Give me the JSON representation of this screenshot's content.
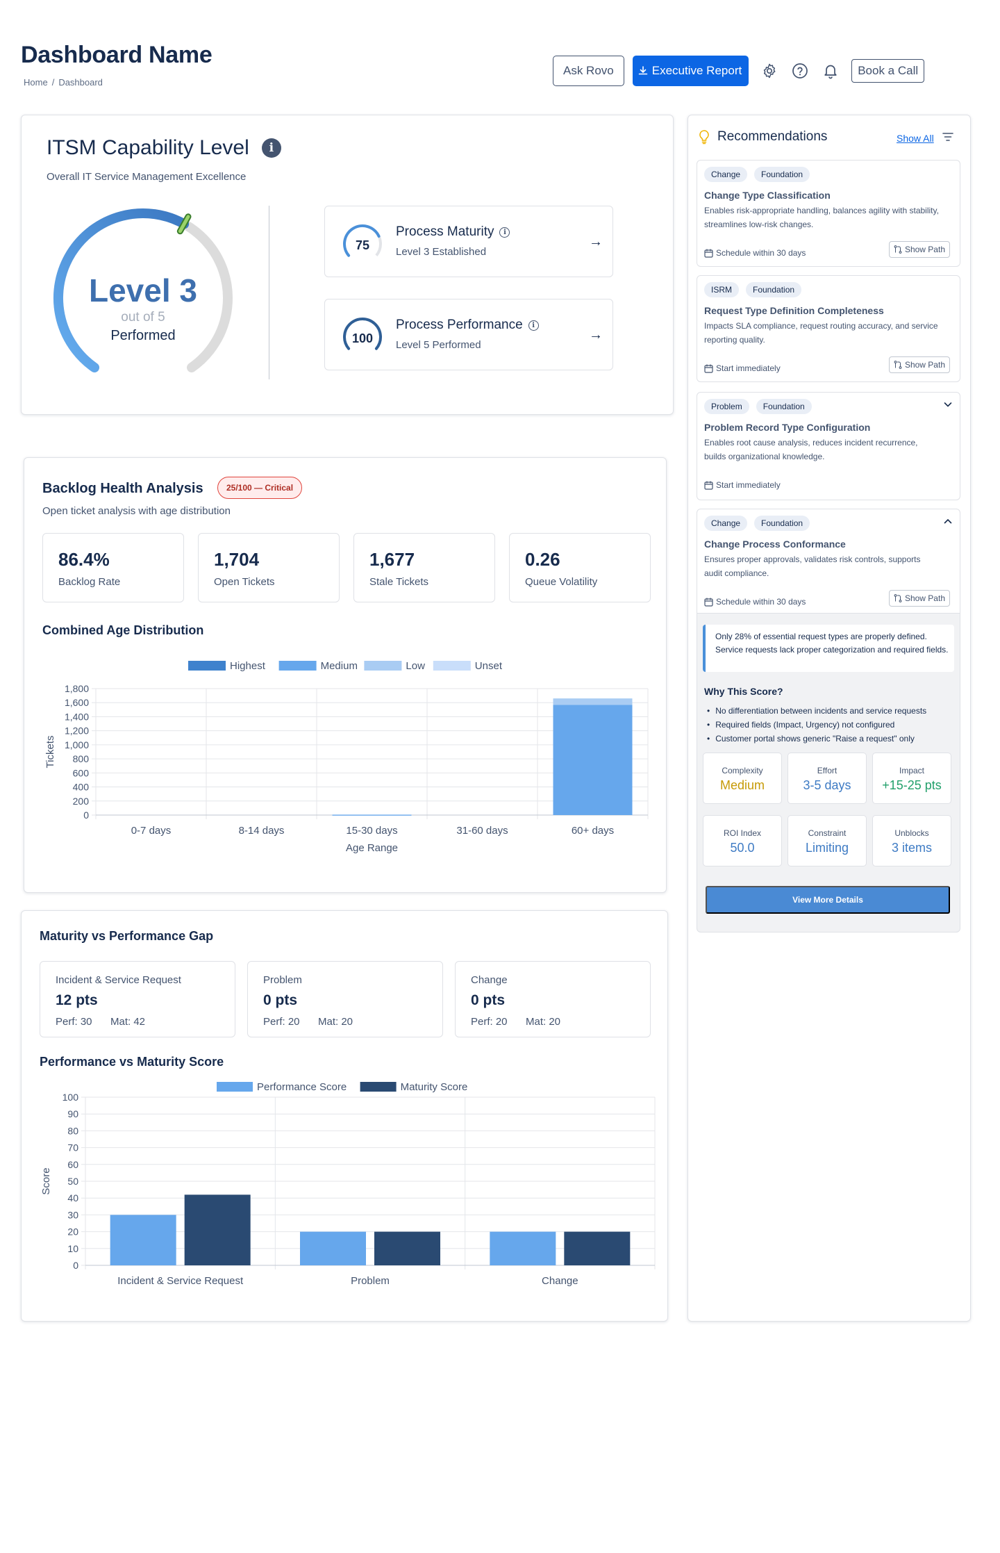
{
  "header": {
    "title": "Dashboard Name",
    "breadcrumb": [
      "Home",
      "Dashboard"
    ]
  },
  "actions": {
    "ask_rovo": "Ask Rovo",
    "executive_report": "Executive Report",
    "book_call": "Book a Call",
    "icons": [
      "gear-icon",
      "help-icon",
      "bell-icon",
      "download-icon"
    ]
  },
  "colors": {
    "primary": "#0c66e4",
    "gauge_fill": "#4a90d9",
    "critical": "#e0443c",
    "highest": "#3f82cd",
    "medium": "#66a7ec",
    "low": "#a9ccf3",
    "unset": "#c9defa",
    "maturity": "#2a4a72"
  },
  "itsm": {
    "title": "ITSM Capability Level",
    "subtitle": "Overall IT Service Management Excellence",
    "level_label": "Level 3",
    "level": 3,
    "max_level": 5,
    "out_of": "out of 5",
    "status": "Performed",
    "process_maturity": {
      "name": "Process Maturity",
      "score": 75,
      "score_label": "75",
      "subtitle": "Level 3 Established"
    },
    "process_performance": {
      "name": "Process Performance",
      "score": 100,
      "score_label": "100",
      "subtitle": "Level 5 Performed"
    }
  },
  "backlog": {
    "title": "Backlog Health Analysis",
    "badge": "25/100 — Critical",
    "subtitle": "Open ticket analysis with age distribution",
    "stats": [
      {
        "value": "86.4%",
        "label": "Backlog Rate"
      },
      {
        "value": "1,704",
        "label": "Open Tickets"
      },
      {
        "value": "1,677",
        "label": "Stale Tickets"
      },
      {
        "value": "0.26",
        "label": "Queue Volatility"
      }
    ],
    "chart_title": "Combined Age Distribution"
  },
  "gap": {
    "title": "Maturity vs Performance Gap",
    "boxes": [
      {
        "name": "Incident & Service Request",
        "pts": "12 pts",
        "perf": "Perf: 30",
        "mat": "Mat: 42"
      },
      {
        "name": "Problem",
        "pts": "0 pts",
        "perf": "Perf: 20",
        "mat": "Mat: 20"
      },
      {
        "name": "Change",
        "pts": "0 pts",
        "perf": "Perf: 20",
        "mat": "Mat: 20"
      }
    ],
    "chart_title": "Performance vs Maturity Score"
  },
  "chart_data": [
    {
      "type": "bar",
      "stacked": true,
      "categories": [
        "0-7 days",
        "8-14 days",
        "15-30 days",
        "31-60 days",
        "60+ days"
      ],
      "series": [
        {
          "name": "Highest",
          "values": [
            0,
            0,
            0,
            0,
            0
          ]
        },
        {
          "name": "Medium",
          "values": [
            0,
            0,
            2,
            0,
            1570
          ]
        },
        {
          "name": "Low",
          "values": [
            0,
            0,
            8,
            0,
            90
          ]
        },
        {
          "name": "Unset",
          "values": [
            0,
            0,
            0,
            0,
            0
          ]
        }
      ],
      "xlabel": "Age Range",
      "ylabel": "Tickets",
      "ylim": [
        0,
        1800
      ],
      "yticks": [
        "0",
        "200",
        "400",
        "600",
        "800",
        "1,000",
        "1,200",
        "1,400",
        "1,600",
        "1,800"
      ],
      "grid": true,
      "legend": "top"
    },
    {
      "type": "bar",
      "categories": [
        "Incident & Service Request",
        "Problem",
        "Change"
      ],
      "series": [
        {
          "name": "Performance Score",
          "values": [
            30,
            20,
            20
          ]
        },
        {
          "name": "Maturity Score",
          "values": [
            42,
            20,
            20
          ]
        }
      ],
      "xlabel": "",
      "ylabel": "Score",
      "ylim": [
        0,
        100
      ],
      "yticks": [
        "0",
        "10",
        "20",
        "30",
        "40",
        "50",
        "60",
        "70",
        "80",
        "90",
        "100"
      ],
      "grid": true,
      "legend": "top"
    }
  ],
  "recommendations": {
    "title": "Recommendations",
    "show_all": "Show All",
    "show_path": "Show Path",
    "items": [
      {
        "tags": [
          "Change",
          "Foundation"
        ],
        "title": "Change Type Classification",
        "desc": "Enables risk-appropriate handling, balances agility with stability, streamlines low-risk changes.",
        "timing": "Schedule within 30 days",
        "has_path": true
      },
      {
        "tags": [
          "ISRM",
          "Foundation"
        ],
        "title": "Request Type Definition Completeness",
        "desc": "Impacts SLA compliance, request routing accuracy, and service reporting quality.",
        "timing": "Start immediately",
        "has_path": true
      },
      {
        "tags": [
          "Problem",
          "Foundation"
        ],
        "title": "Problem Record Type Configuration",
        "desc": "Enables root cause analysis, reduces incident recurrence, builds organizational knowledge.",
        "timing": "Start immediately",
        "has_path": false
      },
      {
        "tags": [
          "Change",
          "Foundation"
        ],
        "title": "Change Process Conformance",
        "desc": "Ensures proper approvals, validates risk controls, supports audit compliance.",
        "timing": "Schedule within 30 days",
        "has_path": true
      }
    ],
    "detail": {
      "note": "Only 28% of essential request types are properly defined. Service requests lack proper categorization and required fields.",
      "why_title": "Why This Score?",
      "why": [
        "No differentiation between incidents and service requests",
        "Required fields (Impact, Urgency) not configured",
        "Customer portal shows generic \"Raise a request\" only"
      ],
      "metrics": [
        {
          "label": "Complexity",
          "value": "Medium",
          "color": "#c69a06"
        },
        {
          "label": "Effort",
          "value": "3-5 days",
          "color": "#3e7bc4"
        },
        {
          "label": "Impact",
          "value": "+15-25 pts",
          "color": "#22a06b"
        },
        {
          "label": "ROI Index",
          "value": "50.0",
          "color": "#3e7bc4"
        },
        {
          "label": "Constraint",
          "value": "Limiting",
          "color": "#3e7bc4"
        },
        {
          "label": "Unblocks",
          "value": "3 items",
          "color": "#3e7bc4"
        }
      ],
      "view_more": "View More Details"
    }
  }
}
